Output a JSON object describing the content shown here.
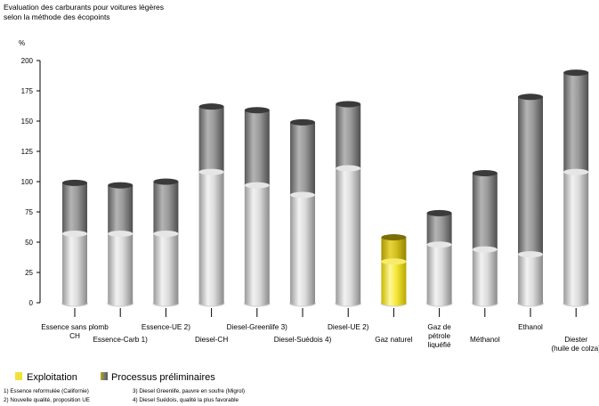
{
  "chart_data": {
    "type": "bar",
    "title_lines": [
      "Evaluation des carburants pour voitures légères",
      "selon la méthode des écopoints"
    ],
    "ylabel": "%",
    "ylim": [
      0,
      200
    ],
    "yticks": [
      "0",
      "25",
      "50",
      "75",
      "100",
      "125",
      "150",
      "175",
      "200"
    ],
    "categories": [
      {
        "lines": [
          "Essence sans plomb",
          "CH"
        ],
        "row": 0
      },
      {
        "lines": [
          "Essence-Carb 1)"
        ],
        "row": 1
      },
      {
        "lines": [
          "Essence-UE 2)"
        ],
        "row": 0
      },
      {
        "lines": [
          "Diesel-CH"
        ],
        "row": 1
      },
      {
        "lines": [
          "Diesel-Greenlife 3)"
        ],
        "row": 0
      },
      {
        "lines": [
          "Diesel-Suédois 4)"
        ],
        "row": 1
      },
      {
        "lines": [
          "Diesel-UE 2)"
        ],
        "row": 0
      },
      {
        "lines": [
          "Gaz naturel"
        ],
        "row": 1
      },
      {
        "lines": [
          "Gaz de",
          "pétrole",
          "liquéfié"
        ],
        "row": 0
      },
      {
        "lines": [
          "Méthanol"
        ],
        "row": 1
      },
      {
        "lines": [
          "Ethanol"
        ],
        "row": 0
      },
      {
        "lines": [
          "Diester",
          "(huile de colza)"
        ],
        "row": 1
      }
    ],
    "series": [
      {
        "name": "Exploitation",
        "values": [
          57,
          57,
          57,
          108,
          97,
          89,
          111,
          34,
          48,
          44,
          40,
          108
        ]
      },
      {
        "name": "Processus préliminaires",
        "values": [
          42,
          40,
          43,
          54,
          62,
          60,
          53,
          20,
          26,
          63,
          130,
          82
        ]
      }
    ],
    "highlight_index": 7,
    "colors": {
      "exploitation": "#d2d2d2",
      "preliminaires": "#8c8c8c",
      "highlight_exploitation": "#f3e83a",
      "highlight_preliminaires": "#c8b400"
    }
  },
  "legend": {
    "items": [
      {
        "label": "Exploitation",
        "color": "#f0e23a"
      },
      {
        "label": "Processus préliminaires",
        "color": "#7d7d7d"
      }
    ]
  },
  "footnotes": {
    "left": [
      "1) Essence reformulée (Californie)",
      "2) Nouvelle qualité, proposition UE"
    ],
    "right": [
      "3) Diesel Greenlife, pauvre en soufre (Migrol)",
      "4) Diesel Suédois, qualité la plus favorable"
    ]
  }
}
